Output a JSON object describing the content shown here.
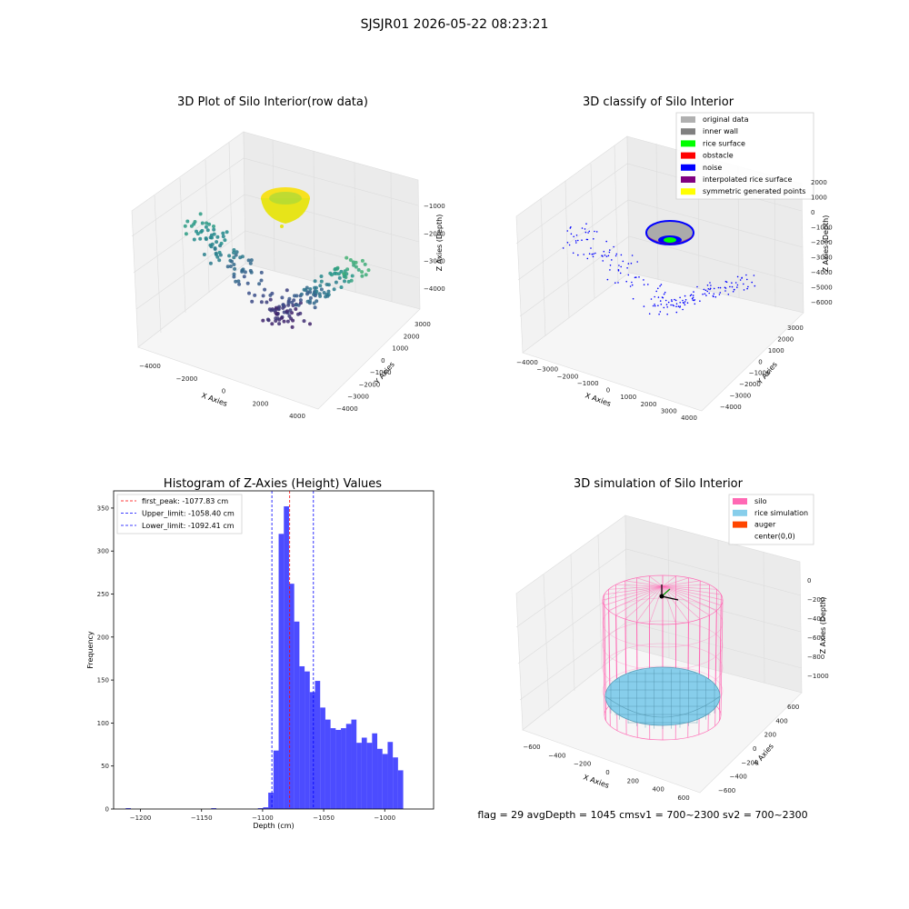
{
  "suptitle": "SJSJR01 2026-05-22 08:23:21",
  "panels": {
    "raw": {
      "title": "3D Plot of Silo Interior(row data)",
      "xlabel": "X Axies",
      "ylabel": "Y Axies",
      "zlabel": "Z Axies (Depth)",
      "xticks": [
        "−4000",
        "−2000",
        "0",
        "2000",
        "4000"
      ],
      "yticks": [
        "−4000",
        "−3000",
        "−2000",
        "−1000",
        "0",
        "1000",
        "2000",
        "3000"
      ],
      "zticks": [
        "−1000",
        "−2000",
        "−3000",
        "−4000"
      ]
    },
    "classify": {
      "title": "3D classify of Silo Interior",
      "xlabel": "X Axies",
      "ylabel": "Y Axies",
      "zlabel": "Z Axies (Depth)",
      "xticks": [
        "−4000",
        "−3000",
        "−2000",
        "−1000",
        "0",
        "1000",
        "2000",
        "3000",
        "4000"
      ],
      "yticks": [
        "−4000",
        "−3000",
        "−2000",
        "−1000",
        "0",
        "1000",
        "2000",
        "3000"
      ],
      "zticks": [
        "2000",
        "1000",
        "0",
        "−1000",
        "−2000",
        "−3000",
        "−4000",
        "−5000",
        "−6000"
      ],
      "legend": [
        {
          "label": "original data",
          "color": "#b0b0b0"
        },
        {
          "label": "inner wall",
          "color": "#808080"
        },
        {
          "label": "rice surface",
          "color": "#00ff00"
        },
        {
          "label": "obstacle",
          "color": "#ff0000"
        },
        {
          "label": "noise",
          "color": "#0000ff"
        },
        {
          "label": "interpolated rice surface",
          "color": "#800080"
        },
        {
          "label": "symmetric generated points",
          "color": "#ffff00"
        }
      ]
    },
    "simulation": {
      "title": "3D simulation of Silo Interior",
      "xlabel": "X Axies",
      "ylabel": "Y Axies",
      "zlabel": "Z Axies (Depth)",
      "xticks": [
        "−600",
        "−400",
        "−200",
        "0",
        "200",
        "400",
        "600"
      ],
      "yticks": [
        "−600",
        "−400",
        "−200",
        "0",
        "200",
        "400",
        "600"
      ],
      "zticks": [
        "0",
        "−200",
        "−400",
        "−600",
        "−800",
        "−1000"
      ],
      "legend": [
        {
          "label": "silo",
          "color": "#ff69b4"
        },
        {
          "label": "rice simulation",
          "color": "#87ceeb"
        },
        {
          "label": "auger",
          "color": "#ff4500"
        },
        {
          "label": "center(0,0)",
          "color": "none"
        }
      ],
      "info": "flag = 29  avgDepth = 1045 cmsv1 = 700~2300  sv2 = 700~2300"
    }
  },
  "chart_data": [
    {
      "type": "scatter",
      "title": "3D Plot of Silo Interior(row data)",
      "xlabel": "X Axies",
      "ylabel": "Y Axies",
      "zlabel": "Z Axies (Depth)",
      "xlim": [
        -4500,
        4500
      ],
      "ylim": [
        -4500,
        3500
      ],
      "zlim": [
        -4500,
        0
      ],
      "colormap": "viridis"
    },
    {
      "type": "scatter",
      "title": "3D classify of Silo Interior",
      "xlabel": "X Axies",
      "ylabel": "Y Axies",
      "zlabel": "Z Axies (Depth)",
      "xlim": [
        -4000,
        4000
      ],
      "ylim": [
        -4500,
        3500
      ],
      "zlim": [
        -6500,
        2500
      ],
      "legend_position": "top-right"
    },
    {
      "type": "bar",
      "title": "Histogram of Z-Axies (Height) Values",
      "xlabel": "Depth (cm)",
      "ylabel": "Frequency",
      "xlim": [
        -1222,
        -960
      ],
      "ylim": [
        0,
        370
      ],
      "xticks": [
        -1200,
        -1150,
        -1100,
        -1050,
        -1000
      ],
      "yticks": [
        0,
        50,
        100,
        150,
        200,
        250,
        300,
        350
      ],
      "bar_color": "#0000ff",
      "bin_width": 4.25,
      "bins": [
        {
          "x": -1210,
          "count": 1
        },
        {
          "x": -1140,
          "count": 1
        },
        {
          "x": -1101.75,
          "count": 1
        },
        {
          "x": -1097.5,
          "count": 2
        },
        {
          "x": -1093.25,
          "count": 19
        },
        {
          "x": -1089,
          "count": 68
        },
        {
          "x": -1084.75,
          "count": 320
        },
        {
          "x": -1080.5,
          "count": 352
        },
        {
          "x": -1076.25,
          "count": 262
        },
        {
          "x": -1072,
          "count": 218
        },
        {
          "x": -1067.75,
          "count": 166
        },
        {
          "x": -1063.5,
          "count": 160
        },
        {
          "x": -1059.25,
          "count": 136
        },
        {
          "x": -1055,
          "count": 149
        },
        {
          "x": -1050.75,
          "count": 118
        },
        {
          "x": -1046.5,
          "count": 104
        },
        {
          "x": -1042.25,
          "count": 94
        },
        {
          "x": -1038,
          "count": 92
        },
        {
          "x": -1033.75,
          "count": 94
        },
        {
          "x": -1029.5,
          "count": 99
        },
        {
          "x": -1025.25,
          "count": 104
        },
        {
          "x": -1021,
          "count": 77
        },
        {
          "x": -1016.75,
          "count": 83
        },
        {
          "x": -1012.5,
          "count": 77
        },
        {
          "x": -1008.25,
          "count": 88
        },
        {
          "x": -1004,
          "count": 70
        },
        {
          "x": -999.75,
          "count": 64
        },
        {
          "x": -995.5,
          "count": 78
        },
        {
          "x": -991.25,
          "count": 60
        },
        {
          "x": -987,
          "count": 45
        }
      ],
      "vlines": [
        {
          "label": "first_peak: -1077.83 cm",
          "value": -1077.83,
          "color": "#ff0000"
        },
        {
          "label": "Upper_limit: -1058.40 cm",
          "value": -1058.4,
          "color": "#0000ff"
        },
        {
          "label": "Lower_limit: -1092.41 cm",
          "value": -1092.41,
          "color": "#0000ff"
        }
      ],
      "legend_position": "top-left"
    },
    {
      "type": "scatter",
      "title": "3D simulation of Silo Interior",
      "xlabel": "X Axies",
      "ylabel": "Y Axies",
      "zlabel": "Z Axies (Depth)",
      "xlim": [
        -650,
        650
      ],
      "ylim": [
        -650,
        650
      ],
      "zlim": [
        -1100,
        100
      ],
      "legend_position": "top-right"
    }
  ]
}
